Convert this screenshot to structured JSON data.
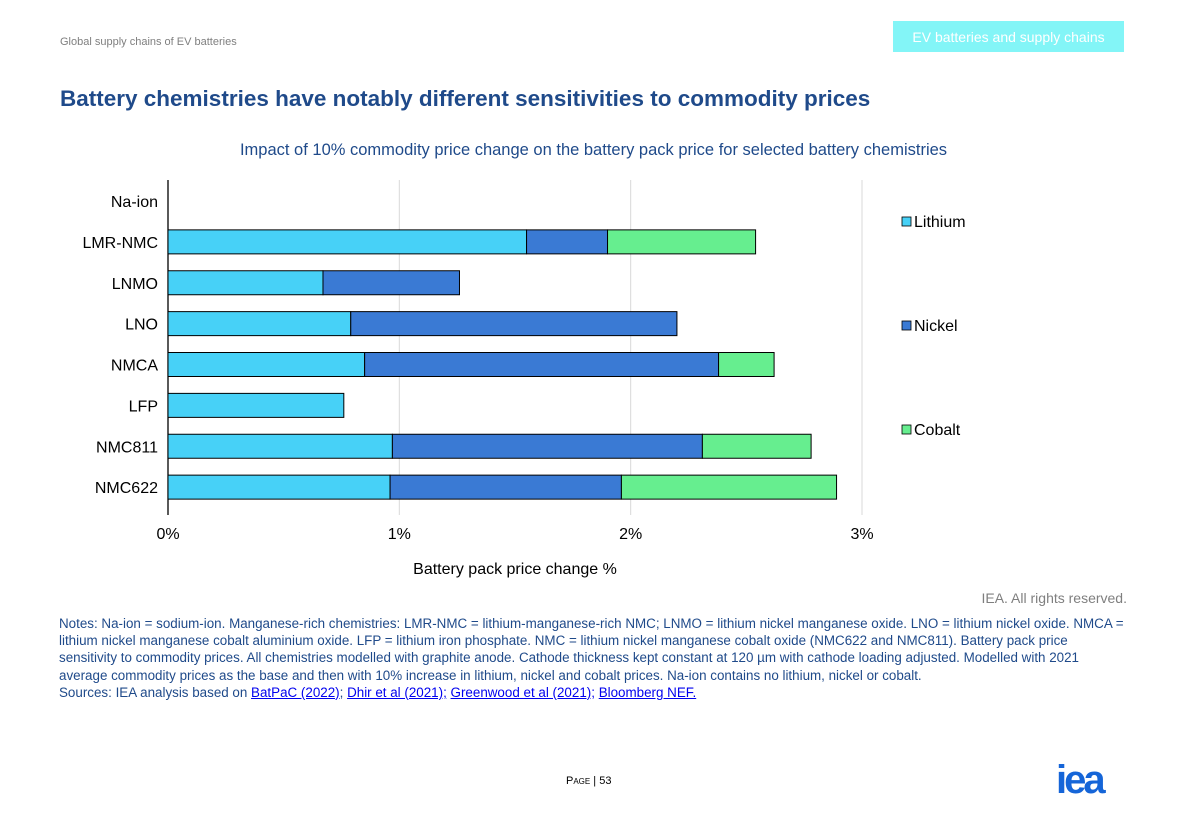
{
  "header": {
    "left_text": "Global supply chains of EV batteries",
    "tab_label": "EV batteries and supply chains"
  },
  "page_title": "Battery chemistries have notably different sensitivities to commodity prices",
  "rights": "IEA. All rights reserved.",
  "notes": {
    "text": "Notes:  Na-ion = sodium-ion. Manganese-rich chemistries: LMR-NMC = lithium-manganese-rich NMC; LNMO = lithium nickel manganese oxide. LNO = lithium nickel oxide. NMCA = lithium nickel manganese cobalt aluminium oxide. LFP = lithium iron phosphate. NMC = lithium nickel manganese cobalt oxide (NMC622 and NMC811). Battery pack price sensitivity to commodity prices. All chemistries modelled with graphite anode. Cathode thickness kept constant at 120 µm with cathode loading adjusted. Modelled with 2021 average commodity prices as the base and then with 10% increase in lithium, nickel and cobalt prices. Na-ion contains no lithium, nickel or cobalt.",
    "sources_prefix": "Sources: IEA analysis based on ",
    "links": [
      "BatPaC (2022)",
      "Dhir et al (2021);",
      "Greenwood et al (2021);",
      "Bloomberg NEF."
    ],
    "link_separator": "; "
  },
  "footer": {
    "page_label": "Page",
    "page_number": "53",
    "logo_text": "iea"
  },
  "colors": {
    "title_blue": "#1f4a8a",
    "lithium": "#47d1f7",
    "nickel": "#3a7ad4",
    "cobalt": "#66ee8f",
    "gridline": "#d9d9d9",
    "tab_bg": "#83f5f7",
    "logo": "#1565d8"
  },
  "chart_data": {
    "type": "bar",
    "orientation": "horizontal",
    "stacked": true,
    "title": "Impact of 10% commodity price change on the battery pack price for selected battery chemistries",
    "xlabel": "Battery pack price change %",
    "ylabel": "",
    "xlim": [
      0,
      3
    ],
    "x_ticks": [
      "0%",
      "1%",
      "2%",
      "3%"
    ],
    "grid": true,
    "legend_position": "right",
    "categories": [
      "Na-ion",
      "LMR-NMC",
      "LNMO",
      "LNO",
      "NMCA",
      "LFP",
      "NMC811",
      "NMC622"
    ],
    "series": [
      {
        "name": "Lithium",
        "color": "#47d1f7",
        "values": [
          0,
          1.55,
          0.67,
          0.79,
          0.85,
          0.76,
          0.97,
          0.96
        ]
      },
      {
        "name": "Nickel",
        "color": "#3a7ad4",
        "values": [
          0,
          0.35,
          0.59,
          1.41,
          1.53,
          0,
          1.34,
          1.0
        ]
      },
      {
        "name": "Cobalt",
        "color": "#66ee8f",
        "values": [
          0,
          0.64,
          0,
          0,
          0.24,
          0,
          0.47,
          0.93
        ]
      }
    ]
  }
}
